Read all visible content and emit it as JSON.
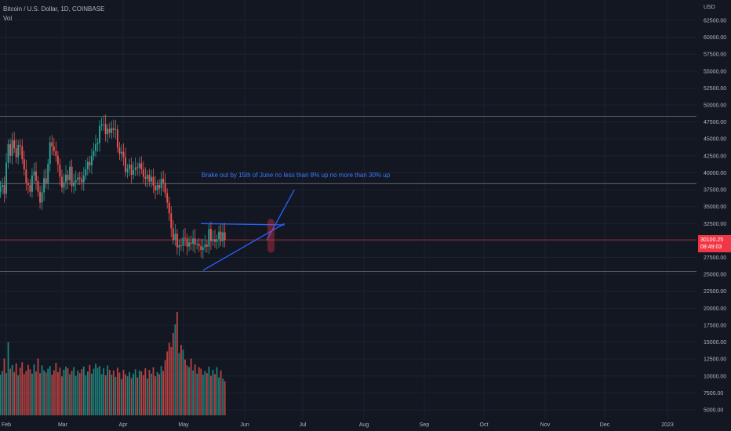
{
  "header": {
    "symbol_line": "Bitcoin / U.S. Dollar, 1D, COINBASE",
    "volume_label": "Vol"
  },
  "price_axis": {
    "currency": "USD",
    "last_price": "30100.25",
    "countdown": "08:49:03"
  },
  "annotation": {
    "text": "Brake out by 15th of June no less than 8% up no more than 30% up"
  },
  "colors": {
    "background": "#131722",
    "up": "#26a69a",
    "down": "#ef5350",
    "trendline": "#2962ff",
    "last_price": "#f23645"
  },
  "chart_data": {
    "type": "candlestick",
    "x_ticks": [
      "Feb",
      "Mar",
      "Apr",
      "May",
      "Jun",
      "Jul",
      "Aug",
      "Sep",
      "Oct",
      "Nov",
      "Dec",
      "2023"
    ],
    "y_ticks": [
      "5000.00",
      "7500.00",
      "10000.00",
      "12500.00",
      "15000.00",
      "17500.00",
      "20000.00",
      "22500.00",
      "25000.00",
      "27500.00",
      "30000.00",
      "32500.00",
      "35000.00",
      "37500.00",
      "40000.00",
      "42500.00",
      "45000.00",
      "47500.00",
      "50000.00",
      "52500.00",
      "55000.00",
      "57500.00",
      "60000.00",
      "62500.00"
    ],
    "ylim": [
      3500,
      65500
    ],
    "date_range": [
      "2022-01-28",
      "2022-06-13"
    ],
    "candles_close": [
      37200,
      37900,
      38200,
      36900,
      41500,
      44200,
      42500,
      44800,
      43600,
      42300,
      44100,
      43900,
      42000,
      40500,
      38500,
      38200,
      37200,
      39600,
      40200,
      38800,
      37200,
      35600,
      37100,
      39200,
      38400,
      41300,
      44500,
      43900,
      43200,
      42500,
      41200,
      39400,
      37800,
      38600,
      39700,
      38900,
      40900,
      38000,
      38600,
      38900,
      39300,
      39100,
      38600,
      39600,
      40500,
      41600,
      41100,
      42500,
      43200,
      44200,
      44400,
      46900,
      47100,
      47200,
      45700,
      46500,
      45900,
      46600,
      46300,
      46400,
      43700,
      42800,
      43100,
      42300,
      40100,
      40600,
      41200,
      39700,
      40400,
      40800,
      40700,
      41400,
      40500,
      39400,
      39100,
      39700,
      38700,
      39400,
      38100,
      37400,
      38200,
      37700,
      39100,
      38500,
      37000,
      35600,
      34000,
      31800,
      30100,
      31000,
      29000,
      29300,
      29200,
      30400,
      30300,
      29100,
      29700,
      29500,
      30300,
      29400,
      29500,
      29200,
      28600,
      29000,
      29400,
      29100,
      31700,
      29900,
      30200,
      29800,
      30200,
      31300,
      29900,
      31200,
      30100
    ],
    "volume_sample": [
      9000,
      7500,
      8200,
      10500,
      7800,
      13500,
      8600,
      9300,
      8000,
      9600,
      7400,
      8800,
      9800,
      7600,
      8200,
      9300,
      8500,
      7700,
      9400,
      8100,
      10500,
      7800,
      9200,
      8300,
      7900,
      8600,
      9100,
      7500,
      8300,
      9700,
      8000,
      8800,
      7200,
      8400,
      9000,
      8700,
      7600,
      8200,
      8900,
      7300,
      8300,
      7800,
      8500,
      9000,
      7400,
      8100,
      9300,
      7700,
      8600,
      9500,
      8800,
      9100,
      7600,
      8700,
      7400,
      9200,
      8400,
      7500,
      8300,
      7100,
      8800,
      7900,
      6700,
      8400,
      7600,
      7200,
      8000,
      6900,
      7700,
      8500,
      7000,
      8300,
      8100,
      7400,
      8700,
      6800,
      8400,
      7700,
      8900,
      7200,
      8000,
      7600,
      9100,
      8200,
      10200,
      11800,
      13400,
      12600,
      15200,
      16800,
      19100,
      11500,
      13000,
      12100,
      10300,
      9200,
      8900,
      10500,
      8300,
      9400,
      7700,
      8900,
      8600,
      7500,
      8200,
      7800,
      9000,
      7300,
      8400,
      7600,
      8900,
      7000,
      8300,
      6800,
      6300
    ],
    "levels": [
      48300,
      38400,
      30100,
      25400
    ],
    "triangle": {
      "upper": [
        [
          "2022-05-10",
          32500
        ],
        [
          "2022-06-21",
          32300
        ]
      ],
      "lower": [
        [
          "2022-05-11",
          25600
        ],
        [
          "2022-06-21",
          32500
        ]
      ],
      "breakout": [
        [
          "2022-06-12",
          30000
        ],
        [
          "2022-06-26",
          37500
        ]
      ]
    }
  }
}
